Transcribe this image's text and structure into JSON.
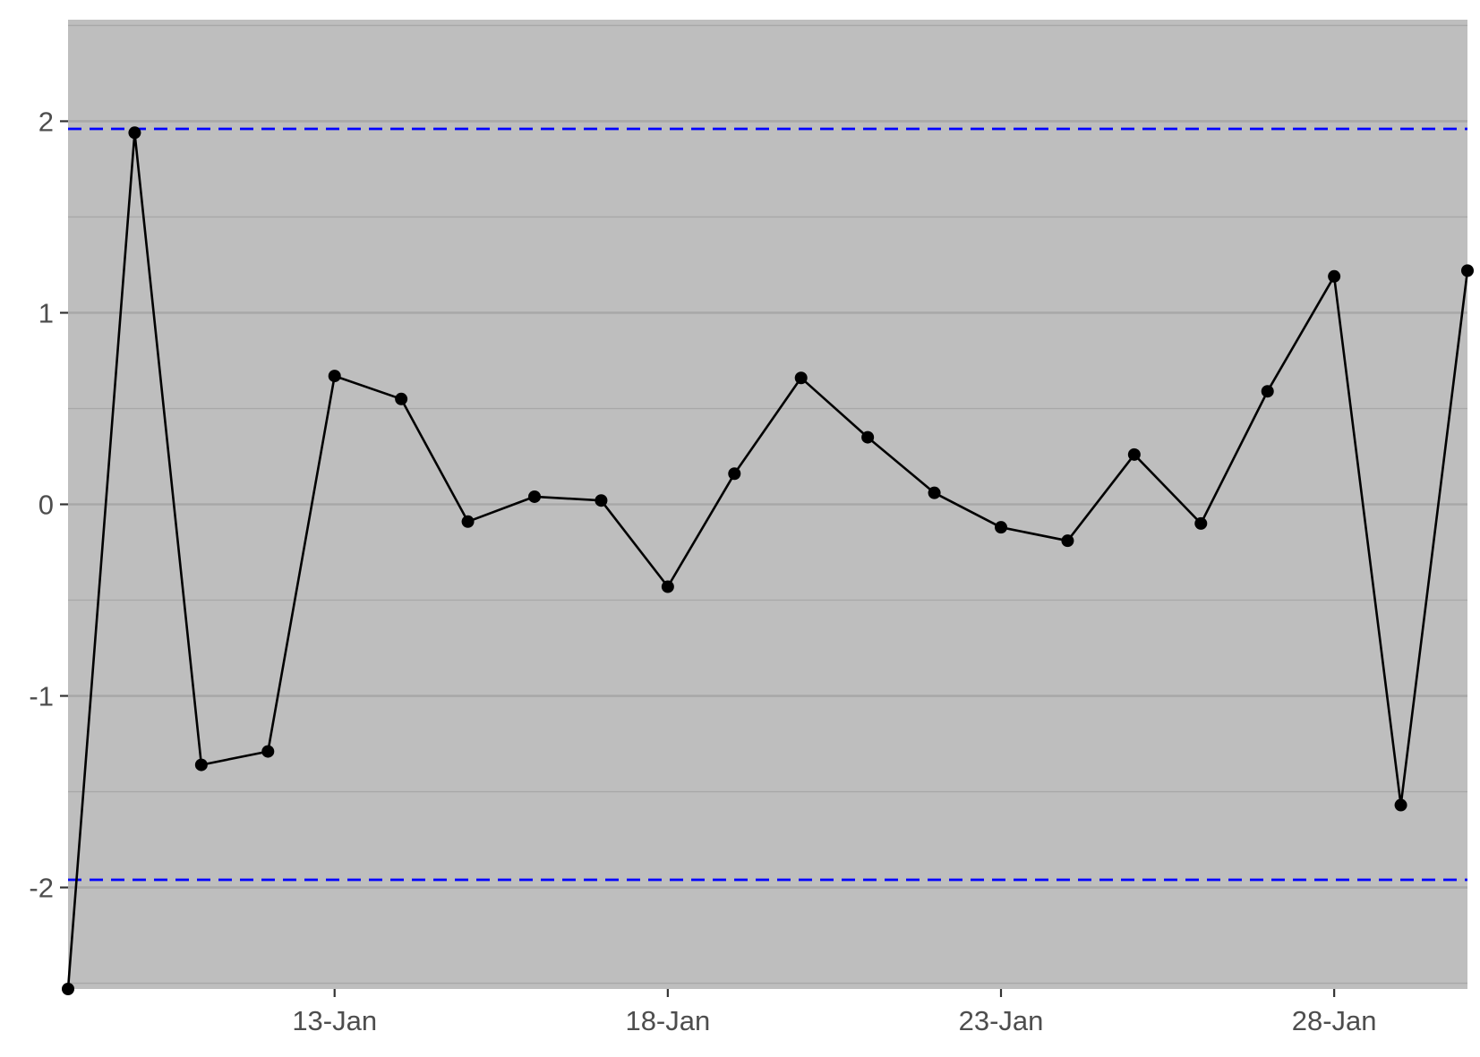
{
  "chart_data": {
    "type": "line",
    "title": "",
    "xlabel": "",
    "ylabel": "",
    "x": [
      "2021-01-09",
      "2021-01-10",
      "2021-01-11",
      "2021-01-12",
      "2021-01-13",
      "2021-01-14",
      "2021-01-15",
      "2021-01-16",
      "2021-01-17",
      "2021-01-18",
      "2021-01-19",
      "2021-01-20",
      "2021-01-21",
      "2021-01-22",
      "2021-01-23",
      "2021-01-24",
      "2021-01-25",
      "2021-01-26",
      "2021-01-27",
      "2021-01-28",
      "2021-01-29",
      "2021-01-30"
    ],
    "series": [
      {
        "values": [
          -2.53,
          1.94,
          -1.36,
          -1.29,
          0.67,
          0.55,
          -0.09,
          0.04,
          0.02,
          -0.43,
          0.16,
          0.66,
          0.35,
          0.06,
          -0.12,
          -0.19,
          0.26,
          -0.1,
          0.59,
          1.19,
          -1.57,
          1.22
        ],
        "color": "#000000"
      }
    ],
    "xlim": [
      "2021-01-09",
      "2021-01-30"
    ],
    "ylim": [
      -2.53,
      2.53
    ],
    "x_ticks": [
      {
        "date": "2021-01-13",
        "label": "13-Jan"
      },
      {
        "date": "2021-01-18",
        "label": "18-Jan"
      },
      {
        "date": "2021-01-23",
        "label": "23-Jan"
      },
      {
        "date": "2021-01-28",
        "label": "28-Jan"
      }
    ],
    "y_ticks": [
      {
        "value": 2,
        "label": "2"
      },
      {
        "value": 1,
        "label": "1"
      },
      {
        "value": 0,
        "label": "0"
      },
      {
        "value": -1,
        "label": "-1"
      },
      {
        "value": -2,
        "label": "-2"
      }
    ],
    "y_minor_ticks": [
      2.5,
      1.5,
      0.5,
      -0.5,
      -1.5,
      -2.5
    ],
    "reference_lines": [
      {
        "value": 1.96,
        "color": "#0000ff",
        "style": "dashed"
      },
      {
        "value": -1.96,
        "color": "#0000ff",
        "style": "dashed"
      }
    ],
    "grid": true,
    "panel_background": "#bebebe",
    "grid_color": "#a8a8a8",
    "legend": "none"
  }
}
